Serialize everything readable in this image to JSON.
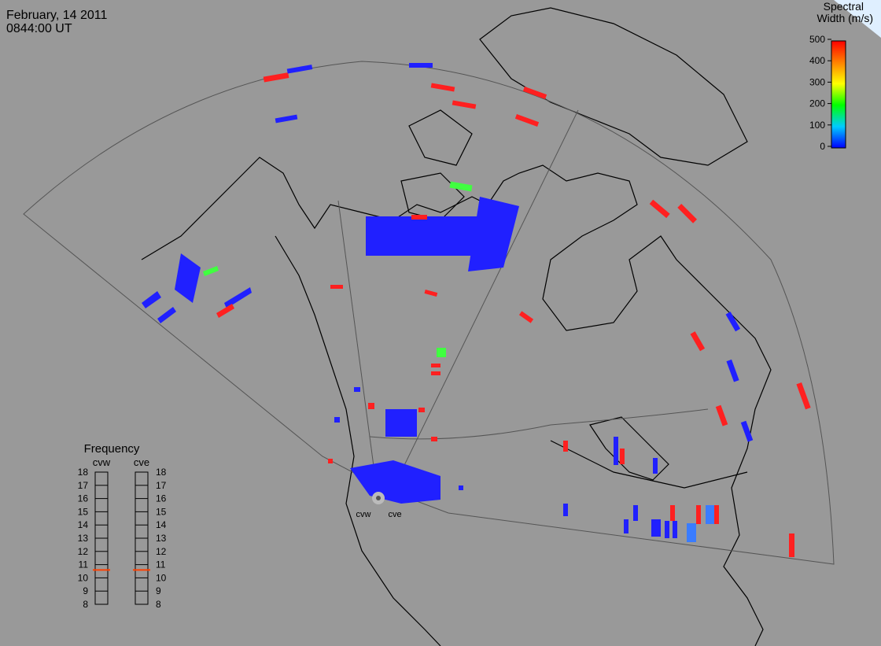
{
  "header": {
    "date": "February, 14 2011",
    "time": "0844:00 UT"
  },
  "colorbar": {
    "title": [
      "Spectral",
      "Width (m/s)"
    ],
    "range": [
      0,
      500
    ],
    "ticks": [
      0,
      100,
      200,
      300,
      400,
      500
    ]
  },
  "frequency": {
    "title": "Frequency",
    "range": [
      8,
      18
    ],
    "ticks": [
      8,
      9,
      10,
      11,
      12,
      13,
      14,
      15,
      16,
      17,
      18
    ],
    "radars": [
      {
        "name": "cvw",
        "value": 10.6
      },
      {
        "name": "cve",
        "value": 10.6
      }
    ]
  },
  "stations": [
    "cvw",
    "cve"
  ]
}
